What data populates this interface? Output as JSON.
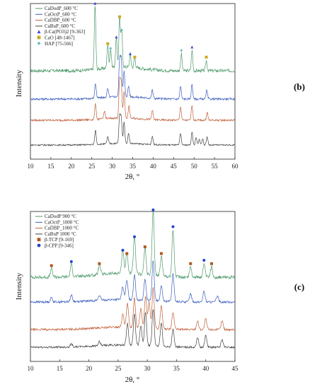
{
  "chart_data": [
    {
      "type": "line",
      "panel_label": "(b)",
      "xlabel": "2θ, °",
      "ylabel": "Intensity",
      "xlim": [
        10,
        60
      ],
      "x_ticks": [
        10,
        15,
        20,
        25,
        30,
        35,
        40,
        45,
        50,
        55,
        60
      ],
      "series": [
        {
          "name": "CaDodP_600 °C",
          "color": "#4f9a6c",
          "peaks": [
            [
              25.8,
              0.95
            ],
            [
              28.9,
              0.35
            ],
            [
              29.6,
              0.28
            ],
            [
              31.0,
              0.45
            ],
            [
              31.8,
              0.75
            ],
            [
              32.3,
              0.55
            ],
            [
              34.4,
              0.2
            ],
            [
              35.5,
              0.15
            ],
            [
              46.9,
              0.25
            ],
            [
              49.5,
              0.3
            ],
            [
              53.0,
              0.15
            ]
          ]
        },
        {
          "name": "CaOctP_600 °C",
          "color": "#3d5fbf",
          "peaks": [
            [
              25.9,
              0.35
            ],
            [
              28.9,
              0.2
            ],
            [
              31.8,
              0.85
            ],
            [
              32.2,
              0.9
            ],
            [
              32.9,
              0.6
            ],
            [
              34.0,
              0.25
            ],
            [
              39.8,
              0.2
            ],
            [
              46.7,
              0.3
            ],
            [
              49.5,
              0.35
            ],
            [
              53.1,
              0.2
            ]
          ]
        },
        {
          "name": "CaDBP_600 °C",
          "color": "#c0603a",
          "peaks": [
            [
              25.9,
              0.4
            ],
            [
              28.1,
              0.2
            ],
            [
              31.8,
              0.95
            ],
            [
              32.2,
              0.9
            ],
            [
              32.9,
              0.7
            ],
            [
              34.1,
              0.3
            ],
            [
              39.8,
              0.25
            ],
            [
              46.7,
              0.35
            ],
            [
              49.5,
              0.4
            ],
            [
              53.2,
              0.2
            ]
          ]
        },
        {
          "name": "CaBuP_600 °C",
          "color": "#444444",
          "peaks": [
            [
              25.9,
              0.5
            ],
            [
              28.9,
              0.25
            ],
            [
              31.8,
              0.95
            ],
            [
              32.2,
              0.9
            ],
            [
              32.9,
              0.75
            ],
            [
              34.0,
              0.35
            ],
            [
              39.8,
              0.3
            ],
            [
              46.7,
              0.4
            ],
            [
              49.5,
              0.45
            ],
            [
              50.5,
              0.25
            ],
            [
              51.3,
              0.2
            ],
            [
              52.1,
              0.22
            ],
            [
              53.2,
              0.3
            ]
          ]
        }
      ],
      "markers": [
        {
          "name": "β-Ca(PO3)2 [9-363]",
          "shape": "triangle",
          "color": "#4444dd"
        },
        {
          "name": "CaO [48-1467]",
          "shape": "square",
          "color": "#ccaa22"
        },
        {
          "name": "HAP [75-566]",
          "shape": "diamond",
          "color": "#66bbbb"
        }
      ]
    },
    {
      "type": "line",
      "panel_label": "(c)",
      "xlabel": "2θ, °",
      "ylabel": "Intensity",
      "xlim": [
        10,
        45
      ],
      "x_ticks": [
        10,
        15,
        20,
        25,
        30,
        35,
        40,
        45
      ],
      "series": [
        {
          "name": "CaDodP 900 °C",
          "color": "#4f9a6c",
          "peaks": [
            [
              13.6,
              0.12
            ],
            [
              17.0,
              0.18
            ],
            [
              21.8,
              0.15
            ],
            [
              25.8,
              0.35
            ],
            [
              26.5,
              0.3
            ],
            [
              27.8,
              0.55
            ],
            [
              29.6,
              0.4
            ],
            [
              31.0,
              0.95
            ],
            [
              32.4,
              0.3
            ],
            [
              34.4,
              0.7
            ],
            [
              37.4,
              0.15
            ],
            [
              39.7,
              0.2
            ],
            [
              41.0,
              0.15
            ]
          ]
        },
        {
          "name": "CaOctP_1000 °C",
          "color": "#3d5fbf",
          "peaks": [
            [
              13.6,
              0.1
            ],
            [
              17.0,
              0.15
            ],
            [
              21.8,
              0.12
            ],
            [
              25.8,
              0.3
            ],
            [
              26.5,
              0.45
            ],
            [
              27.8,
              0.6
            ],
            [
              29.6,
              0.5
            ],
            [
              31.0,
              0.95
            ],
            [
              32.4,
              0.35
            ],
            [
              34.4,
              0.65
            ],
            [
              37.4,
              0.2
            ],
            [
              39.7,
              0.25
            ],
            [
              42.0,
              0.15
            ]
          ]
        },
        {
          "name": "CaDBP_1000 °C",
          "color": "#c0603a",
          "peaks": [
            [
              25.8,
              0.3
            ],
            [
              26.6,
              0.55
            ],
            [
              27.8,
              0.7
            ],
            [
              28.9,
              0.45
            ],
            [
              29.7,
              0.75
            ],
            [
              30.3,
              0.6
            ],
            [
              31.0,
              0.95
            ],
            [
              32.4,
              0.55
            ],
            [
              34.4,
              0.4
            ],
            [
              38.6,
              0.2
            ],
            [
              40.0,
              0.25
            ],
            [
              42.8,
              0.2
            ]
          ]
        },
        {
          "name": "CaBuP 1000 °C",
          "color": "#444444",
          "peaks": [
            [
              17.0,
              0.08
            ],
            [
              21.8,
              0.1
            ],
            [
              26.6,
              0.55
            ],
            [
              27.8,
              0.8
            ],
            [
              28.9,
              0.5
            ],
            [
              29.7,
              0.85
            ],
            [
              31.0,
              0.95
            ],
            [
              32.4,
              0.6
            ],
            [
              34.4,
              0.45
            ],
            [
              38.6,
              0.25
            ],
            [
              40.0,
              0.3
            ],
            [
              42.8,
              0.2
            ]
          ]
        }
      ],
      "markers": [
        {
          "name": "β-TCP [9-169]",
          "shape": "square",
          "color": "#b05a20"
        },
        {
          "name": "β-CPP [9-346]",
          "shape": "circle",
          "color": "#2244cc"
        }
      ]
    }
  ]
}
